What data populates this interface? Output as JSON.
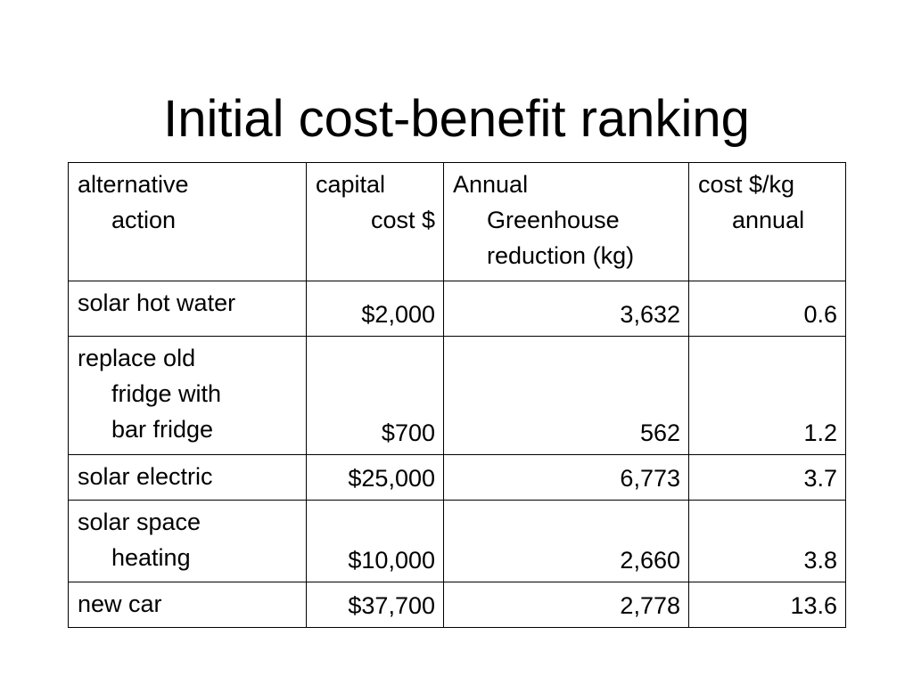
{
  "slide": {
    "title": "Initial cost-benefit ranking"
  },
  "table": {
    "headers": [
      [
        "alternative",
        "action"
      ],
      [
        "capital",
        "cost $"
      ],
      [
        "Annual",
        "Greenhouse",
        "reduction (kg)"
      ],
      [
        "cost $/kg",
        "annual"
      ]
    ],
    "rows": [
      {
        "alternative": [
          "solar hot water"
        ],
        "capital_cost": "$2,000",
        "annual_reduction": "3,632",
        "cost_per_kg": "0.6"
      },
      {
        "alternative": [
          "replace old",
          "fridge with",
          "bar fridge"
        ],
        "capital_cost": "$700",
        "annual_reduction": "562",
        "cost_per_kg": "1.2"
      },
      {
        "alternative": [
          "solar electric"
        ],
        "capital_cost": "$25,000",
        "annual_reduction": "6,773",
        "cost_per_kg": "3.7"
      },
      {
        "alternative": [
          "solar space",
          "heating"
        ],
        "capital_cost": "$10,000",
        "annual_reduction": "2,660",
        "cost_per_kg": "3.8"
      },
      {
        "alternative": [
          "new car"
        ],
        "capital_cost": "$37,700",
        "annual_reduction": "2,778",
        "cost_per_kg": "13.6"
      }
    ]
  }
}
